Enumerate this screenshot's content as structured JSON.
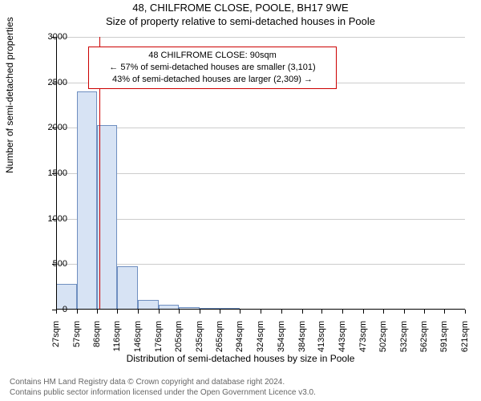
{
  "header": {
    "address": "48, CHILFROME CLOSE, POOLE, BH17 9WE",
    "subtitle": "Size of property relative to semi-detached houses in Poole"
  },
  "chart": {
    "type": "histogram",
    "ylabel": "Number of semi-detached properties",
    "xlabel": "Distribution of semi-detached houses by size in Poole",
    "label_fontsize": 12,
    "tick_fontsize": 11,
    "ymax": 3000,
    "xmin": 27,
    "xmax": 621,
    "x_ticks": [
      27,
      57,
      86,
      116,
      146,
      176,
      205,
      235,
      265,
      294,
      324,
      354,
      384,
      413,
      443,
      473,
      502,
      532,
      562,
      591,
      621
    ],
    "x_suffix": "sqm",
    "y_ticks": [
      0,
      500,
      1000,
      1500,
      2000,
      2500,
      3000
    ],
    "bar_fill": "#d7e3f4",
    "bar_stroke": "#6f8fc0",
    "grid_color": "#cccccc",
    "background_color": "#ffffff",
    "axis_color": "#000000",
    "bars": [
      {
        "x0": 27,
        "x1": 57,
        "count": 280
      },
      {
        "x0": 57,
        "x1": 86,
        "count": 2400
      },
      {
        "x0": 86,
        "x1": 116,
        "count": 2030
      },
      {
        "x0": 116,
        "x1": 146,
        "count": 480
      },
      {
        "x0": 146,
        "x1": 176,
        "count": 110
      },
      {
        "x0": 176,
        "x1": 205,
        "count": 55
      },
      {
        "x0": 205,
        "x1": 235,
        "count": 30
      },
      {
        "x0": 235,
        "x1": 265,
        "count": 20
      },
      {
        "x0": 265,
        "x1": 294,
        "count": 15
      },
      {
        "x0": 294,
        "x1": 324,
        "count": 8
      },
      {
        "x0": 324,
        "x1": 354,
        "count": 5
      },
      {
        "x0": 354,
        "x1": 384,
        "count": 3
      },
      {
        "x0": 384,
        "x1": 413,
        "count": 2
      },
      {
        "x0": 413,
        "x1": 443,
        "count": 2
      },
      {
        "x0": 443,
        "x1": 473,
        "count": 1
      },
      {
        "x0": 473,
        "x1": 502,
        "count": 1
      },
      {
        "x0": 502,
        "x1": 532,
        "count": 1
      },
      {
        "x0": 532,
        "x1": 562,
        "count": 0
      },
      {
        "x0": 562,
        "x1": 591,
        "count": 0
      },
      {
        "x0": 591,
        "x1": 621,
        "count": 1
      }
    ],
    "marker": {
      "value": 90,
      "color": "#cc0000",
      "width": 1.5
    },
    "annotation": {
      "border_color": "#cc0000",
      "lines": [
        "48 CHILFROME CLOSE: 90sqm",
        "← 57% of semi-detached houses are smaller (3,101)",
        "43% of semi-detached houses are larger (2,309) →"
      ]
    }
  },
  "footer": {
    "line1": "Contains HM Land Registry data © Crown copyright and database right 2024.",
    "line2": "Contains public sector information licensed under the Open Government Licence v3.0.",
    "color": "#666666",
    "fontsize": 10
  }
}
